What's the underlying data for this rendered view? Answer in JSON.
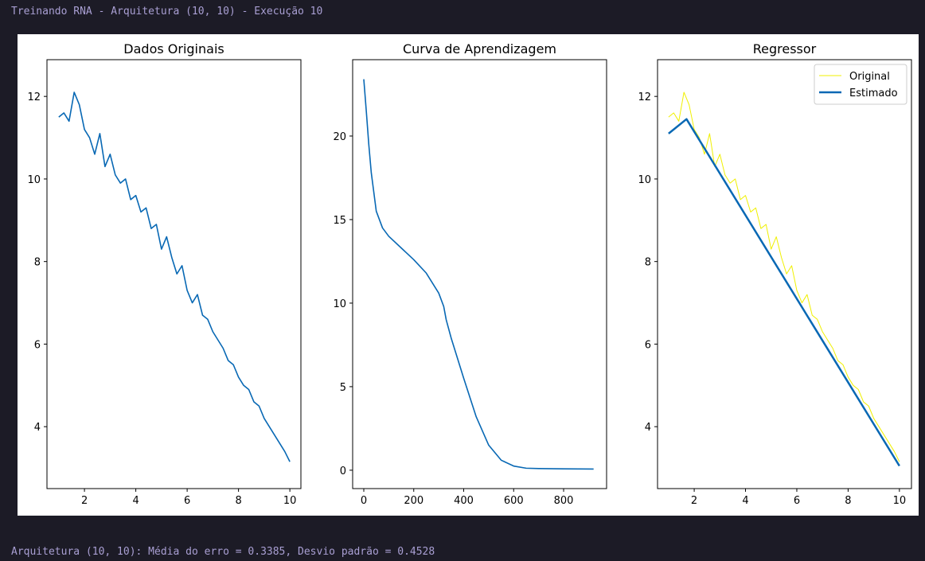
{
  "header": {
    "text": "Treinando RNA - Arquitetura (10, 10) - Execução 10"
  },
  "footer": {
    "text": "Arquitetura (10, 10): Média do erro = 0.3385, Desvio padrão = 0.4528"
  },
  "chart_data": [
    {
      "type": "line",
      "title": "Dados Originais",
      "series": [
        {
          "color": "#0868b4",
          "x": [
            1.0,
            1.2,
            1.4,
            1.6,
            1.8,
            2.0,
            2.2,
            2.4,
            2.6,
            2.8,
            3.0,
            3.2,
            3.4,
            3.6,
            3.8,
            4.0,
            4.2,
            4.4,
            4.6,
            4.8,
            5.0,
            5.2,
            5.4,
            5.6,
            5.8,
            6.0,
            6.2,
            6.4,
            6.6,
            6.8,
            7.0,
            7.2,
            7.4,
            7.6,
            7.8,
            8.0,
            8.2,
            8.4,
            8.6,
            8.8,
            9.0,
            9.2,
            9.4,
            9.6,
            9.8,
            10.0
          ],
          "values": [
            11.5,
            11.6,
            11.4,
            12.1,
            11.8,
            11.2,
            11.0,
            10.6,
            11.1,
            10.3,
            10.6,
            10.1,
            9.9,
            10.0,
            9.5,
            9.6,
            9.2,
            9.3,
            8.8,
            8.9,
            8.3,
            8.6,
            8.1,
            7.7,
            7.9,
            7.3,
            7.0,
            7.2,
            6.7,
            6.6,
            6.3,
            6.1,
            5.9,
            5.6,
            5.5,
            5.2,
            5.0,
            4.9,
            4.6,
            4.5,
            4.2,
            4.0,
            3.8,
            3.6,
            3.4,
            3.15
          ]
        }
      ],
      "xlim": [
        0.54,
        10.43
      ],
      "xticks": [
        2,
        4,
        6,
        8,
        10
      ],
      "ylim": [
        2.5,
        12.89
      ],
      "yticks": [
        4,
        6,
        8,
        10,
        12
      ]
    },
    {
      "type": "line",
      "title": "Curva de Aprendizagem",
      "series": [
        {
          "color": "#0868b4",
          "x": [
            0,
            10,
            20,
            30,
            50,
            75,
            100,
            150,
            200,
            250,
            300,
            320,
            330,
            350,
            400,
            450,
            500,
            550,
            600,
            650,
            700,
            800,
            920
          ],
          "values": [
            23.4,
            21.5,
            19.5,
            17.8,
            15.5,
            14.5,
            14.0,
            13.3,
            12.6,
            11.8,
            10.6,
            9.8,
            9.0,
            7.9,
            5.5,
            3.2,
            1.5,
            0.6,
            0.25,
            0.12,
            0.1,
            0.08,
            0.07
          ]
        }
      ],
      "xlim": [
        -44.6,
        972
      ],
      "xticks": [
        0,
        200,
        400,
        600,
        800
      ],
      "ylim": [
        -1.1,
        24.57
      ],
      "yticks": [
        0,
        5,
        10,
        15,
        20
      ]
    },
    {
      "type": "line",
      "title": "Regressor",
      "legend": "upper right",
      "series": [
        {
          "name": "Original",
          "color": "#f0f000",
          "width": 1,
          "x": [
            1.0,
            1.2,
            1.4,
            1.6,
            1.8,
            2.0,
            2.2,
            2.4,
            2.6,
            2.8,
            3.0,
            3.2,
            3.4,
            3.6,
            3.8,
            4.0,
            4.2,
            4.4,
            4.6,
            4.8,
            5.0,
            5.2,
            5.4,
            5.6,
            5.8,
            6.0,
            6.2,
            6.4,
            6.6,
            6.8,
            7.0,
            7.2,
            7.4,
            7.6,
            7.8,
            8.0,
            8.2,
            8.4,
            8.6,
            8.8,
            9.0,
            9.2,
            9.4,
            9.6,
            9.8,
            10.0
          ],
          "values": [
            11.5,
            11.6,
            11.4,
            12.1,
            11.8,
            11.2,
            11.0,
            10.6,
            11.1,
            10.3,
            10.6,
            10.1,
            9.9,
            10.0,
            9.5,
            9.6,
            9.2,
            9.3,
            8.8,
            8.9,
            8.3,
            8.6,
            8.1,
            7.7,
            7.9,
            7.3,
            7.0,
            7.2,
            6.7,
            6.6,
            6.3,
            6.1,
            5.9,
            5.6,
            5.5,
            5.2,
            5.0,
            4.9,
            4.6,
            4.5,
            4.2,
            4.0,
            3.8,
            3.6,
            3.4,
            3.15
          ]
        },
        {
          "name": "Estimado",
          "color": "#0868b4",
          "width": 2.5,
          "x": [
            1.0,
            1.7,
            10.0
          ],
          "values": [
            11.1,
            11.45,
            3.05
          ]
        }
      ],
      "xlim": [
        0.57,
        10.47
      ],
      "xticks": [
        2,
        4,
        6,
        8,
        10
      ],
      "ylim": [
        2.5,
        12.89
      ],
      "yticks": [
        4,
        6,
        8,
        10,
        12
      ]
    }
  ]
}
